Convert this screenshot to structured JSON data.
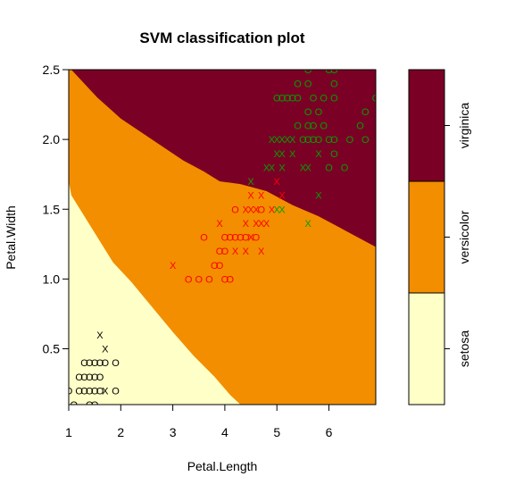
{
  "chart_data": {
    "type": "scatter",
    "title": "SVM classification plot",
    "xlabel": "Petal.Length",
    "ylabel": "Petal.Width",
    "xlim": [
      1,
      6.9
    ],
    "ylim": [
      0.1,
      2.5
    ],
    "x_ticks": [
      "1",
      "2",
      "3",
      "4",
      "5",
      "6"
    ],
    "y_ticks": [
      "0.5",
      "1.0",
      "1.5",
      "2.0",
      "2.5"
    ],
    "grid": false,
    "regions": [
      {
        "label": "setosa",
        "color": "#FFFFC8"
      },
      {
        "label": "versicolor",
        "color": "#F28E00"
      },
      {
        "label": "virginica",
        "color": "#7B0025"
      }
    ],
    "boundaries": {
      "setosa_versicolor": [
        [
          1.0,
          1.7
        ],
        [
          1.05,
          1.6
        ],
        [
          1.25,
          1.48
        ],
        [
          1.55,
          1.3
        ],
        [
          1.85,
          1.12
        ],
        [
          2.2,
          0.98
        ],
        [
          2.6,
          0.8
        ],
        [
          3.0,
          0.62
        ],
        [
          3.4,
          0.45
        ],
        [
          3.8,
          0.3
        ],
        [
          4.1,
          0.17
        ],
        [
          4.3,
          0.1
        ]
      ],
      "versicolor_virginica": [
        [
          1.05,
          2.5
        ],
        [
          1.25,
          2.42
        ],
        [
          1.55,
          2.3
        ],
        [
          2.0,
          2.15
        ],
        [
          2.4,
          2.05
        ],
        [
          2.8,
          1.95
        ],
        [
          3.2,
          1.85
        ],
        [
          3.6,
          1.77
        ],
        [
          3.9,
          1.7
        ],
        [
          4.3,
          1.68
        ],
        [
          4.8,
          1.63
        ],
        [
          5.3,
          1.53
        ],
        [
          5.8,
          1.45
        ],
        [
          6.3,
          1.35
        ],
        [
          6.9,
          1.23
        ]
      ]
    },
    "legend": {
      "position": "right",
      "labels": [
        "setosa",
        "versicolor",
        "virginica"
      ]
    },
    "marker_legend": {
      "support_vector": "X",
      "other": "O"
    },
    "series": [
      {
        "name": "setosa",
        "color": "#000000",
        "points": [
          {
            "x": 1.6,
            "y": 0.6,
            "m": "X"
          },
          {
            "x": 1.7,
            "y": 0.5,
            "m": "X"
          },
          {
            "x": 1.3,
            "y": 0.4,
            "m": "O"
          },
          {
            "x": 1.4,
            "y": 0.4,
            "m": "O"
          },
          {
            "x": 1.5,
            "y": 0.4,
            "m": "O"
          },
          {
            "x": 1.6,
            "y": 0.4,
            "m": "O"
          },
          {
            "x": 1.7,
            "y": 0.4,
            "m": "O"
          },
          {
            "x": 1.9,
            "y": 0.4,
            "m": "O"
          },
          {
            "x": 1.2,
            "y": 0.3,
            "m": "O"
          },
          {
            "x": 1.3,
            "y": 0.3,
            "m": "O"
          },
          {
            "x": 1.4,
            "y": 0.3,
            "m": "O"
          },
          {
            "x": 1.5,
            "y": 0.3,
            "m": "O"
          },
          {
            "x": 1.6,
            "y": 0.3,
            "m": "O"
          },
          {
            "x": 1.0,
            "y": 0.2,
            "m": "O"
          },
          {
            "x": 1.2,
            "y": 0.2,
            "m": "O"
          },
          {
            "x": 1.3,
            "y": 0.2,
            "m": "O"
          },
          {
            "x": 1.4,
            "y": 0.2,
            "m": "O"
          },
          {
            "x": 1.5,
            "y": 0.2,
            "m": "O"
          },
          {
            "x": 1.6,
            "y": 0.2,
            "m": "O"
          },
          {
            "x": 1.7,
            "y": 0.2,
            "m": "X"
          },
          {
            "x": 1.9,
            "y": 0.2,
            "m": "O"
          },
          {
            "x": 1.1,
            "y": 0.1,
            "m": "O"
          },
          {
            "x": 1.4,
            "y": 0.1,
            "m": "O"
          },
          {
            "x": 1.5,
            "y": 0.1,
            "m": "O"
          }
        ]
      },
      {
        "name": "versicolor",
        "color": "#FF0000",
        "points": [
          {
            "x": 4.5,
            "y": 1.7,
            "m": "X"
          },
          {
            "x": 5.0,
            "y": 1.7,
            "m": "X"
          },
          {
            "x": 4.5,
            "y": 1.6,
            "m": "X"
          },
          {
            "x": 4.7,
            "y": 1.6,
            "m": "X"
          },
          {
            "x": 5.1,
            "y": 1.6,
            "m": "X"
          },
          {
            "x": 4.4,
            "y": 1.5,
            "m": "X"
          },
          {
            "x": 4.5,
            "y": 1.5,
            "m": "X"
          },
          {
            "x": 4.6,
            "y": 1.5,
            "m": "X"
          },
          {
            "x": 4.2,
            "y": 1.5,
            "m": "O"
          },
          {
            "x": 4.7,
            "y": 1.5,
            "m": "O"
          },
          {
            "x": 4.9,
            "y": 1.5,
            "m": "X"
          },
          {
            "x": 3.9,
            "y": 1.4,
            "m": "X"
          },
          {
            "x": 4.4,
            "y": 1.4,
            "m": "X"
          },
          {
            "x": 4.6,
            "y": 1.4,
            "m": "X"
          },
          {
            "x": 4.7,
            "y": 1.4,
            "m": "X"
          },
          {
            "x": 4.8,
            "y": 1.4,
            "m": "X"
          },
          {
            "x": 3.6,
            "y": 1.3,
            "m": "O"
          },
          {
            "x": 4.0,
            "y": 1.3,
            "m": "O"
          },
          {
            "x": 4.1,
            "y": 1.3,
            "m": "O"
          },
          {
            "x": 4.2,
            "y": 1.3,
            "m": "O"
          },
          {
            "x": 4.3,
            "y": 1.3,
            "m": "O"
          },
          {
            "x": 4.4,
            "y": 1.3,
            "m": "O"
          },
          {
            "x": 4.5,
            "y": 1.3,
            "m": "X"
          },
          {
            "x": 4.6,
            "y": 1.3,
            "m": "O"
          },
          {
            "x": 3.9,
            "y": 1.2,
            "m": "O"
          },
          {
            "x": 4.0,
            "y": 1.2,
            "m": "O"
          },
          {
            "x": 4.2,
            "y": 1.2,
            "m": "X"
          },
          {
            "x": 4.4,
            "y": 1.2,
            "m": "X"
          },
          {
            "x": 4.7,
            "y": 1.2,
            "m": "X"
          },
          {
            "x": 3.0,
            "y": 1.1,
            "m": "X"
          },
          {
            "x": 3.8,
            "y": 1.1,
            "m": "O"
          },
          {
            "x": 3.9,
            "y": 1.1,
            "m": "O"
          },
          {
            "x": 3.3,
            "y": 1.0,
            "m": "O"
          },
          {
            "x": 3.5,
            "y": 1.0,
            "m": "O"
          },
          {
            "x": 3.7,
            "y": 1.0,
            "m": "O"
          },
          {
            "x": 4.0,
            "y": 1.0,
            "m": "O"
          },
          {
            "x": 4.1,
            "y": 1.0,
            "m": "O"
          }
        ]
      },
      {
        "name": "virginica",
        "color": "#00A000",
        "points": [
          {
            "x": 5.6,
            "y": 2.5,
            "m": "O"
          },
          {
            "x": 6.0,
            "y": 2.5,
            "m": "O"
          },
          {
            "x": 6.1,
            "y": 2.5,
            "m": "O"
          },
          {
            "x": 5.4,
            "y": 2.4,
            "m": "O"
          },
          {
            "x": 5.6,
            "y": 2.4,
            "m": "O"
          },
          {
            "x": 6.1,
            "y": 2.4,
            "m": "O"
          },
          {
            "x": 5.1,
            "y": 2.3,
            "m": "O"
          },
          {
            "x": 5.2,
            "y": 2.3,
            "m": "O"
          },
          {
            "x": 5.3,
            "y": 2.3,
            "m": "O"
          },
          {
            "x": 5.4,
            "y": 2.3,
            "m": "O"
          },
          {
            "x": 5.7,
            "y": 2.3,
            "m": "O"
          },
          {
            "x": 5.9,
            "y": 2.3,
            "m": "O"
          },
          {
            "x": 6.1,
            "y": 2.3,
            "m": "O"
          },
          {
            "x": 6.9,
            "y": 2.3,
            "m": "O"
          },
          {
            "x": 5.0,
            "y": 2.3,
            "m": "O"
          },
          {
            "x": 5.6,
            "y": 2.2,
            "m": "O"
          },
          {
            "x": 5.8,
            "y": 2.2,
            "m": "O"
          },
          {
            "x": 6.7,
            "y": 2.2,
            "m": "O"
          },
          {
            "x": 5.4,
            "y": 2.1,
            "m": "O"
          },
          {
            "x": 5.6,
            "y": 2.1,
            "m": "O"
          },
          {
            "x": 5.7,
            "y": 2.1,
            "m": "O"
          },
          {
            "x": 5.9,
            "y": 2.1,
            "m": "O"
          },
          {
            "x": 6.6,
            "y": 2.1,
            "m": "O"
          },
          {
            "x": 5.5,
            "y": 2.0,
            "m": "O"
          },
          {
            "x": 5.6,
            "y": 2.0,
            "m": "O"
          },
          {
            "x": 5.7,
            "y": 2.0,
            "m": "O"
          },
          {
            "x": 5.8,
            "y": 2.0,
            "m": "O"
          },
          {
            "x": 6.0,
            "y": 2.0,
            "m": "O"
          },
          {
            "x": 6.1,
            "y": 2.0,
            "m": "O"
          },
          {
            "x": 6.4,
            "y": 2.0,
            "m": "O"
          },
          {
            "x": 6.7,
            "y": 2.0,
            "m": "O"
          },
          {
            "x": 4.9,
            "y": 2.0,
            "m": "X"
          },
          {
            "x": 5.0,
            "y": 2.0,
            "m": "X"
          },
          {
            "x": 5.1,
            "y": 2.0,
            "m": "X"
          },
          {
            "x": 5.2,
            "y": 2.0,
            "m": "X"
          },
          {
            "x": 5.3,
            "y": 2.0,
            "m": "X"
          },
          {
            "x": 5.0,
            "y": 1.9,
            "m": "X"
          },
          {
            "x": 5.1,
            "y": 1.9,
            "m": "X"
          },
          {
            "x": 5.3,
            "y": 1.9,
            "m": "X"
          },
          {
            "x": 5.8,
            "y": 1.9,
            "m": "X"
          },
          {
            "x": 6.1,
            "y": 1.9,
            "m": "O"
          },
          {
            "x": 4.8,
            "y": 1.8,
            "m": "X"
          },
          {
            "x": 4.9,
            "y": 1.8,
            "m": "X"
          },
          {
            "x": 5.1,
            "y": 1.8,
            "m": "X"
          },
          {
            "x": 5.5,
            "y": 1.8,
            "m": "X"
          },
          {
            "x": 5.6,
            "y": 1.8,
            "m": "X"
          },
          {
            "x": 6.0,
            "y": 1.8,
            "m": "O"
          },
          {
            "x": 6.3,
            "y": 1.8,
            "m": "O"
          },
          {
            "x": 4.5,
            "y": 1.7,
            "m": "X"
          },
          {
            "x": 5.8,
            "y": 1.6,
            "m": "X"
          },
          {
            "x": 5.0,
            "y": 1.5,
            "m": "X"
          },
          {
            "x": 5.1,
            "y": 1.5,
            "m": "X"
          },
          {
            "x": 5.6,
            "y": 1.4,
            "m": "X"
          }
        ]
      }
    ]
  }
}
